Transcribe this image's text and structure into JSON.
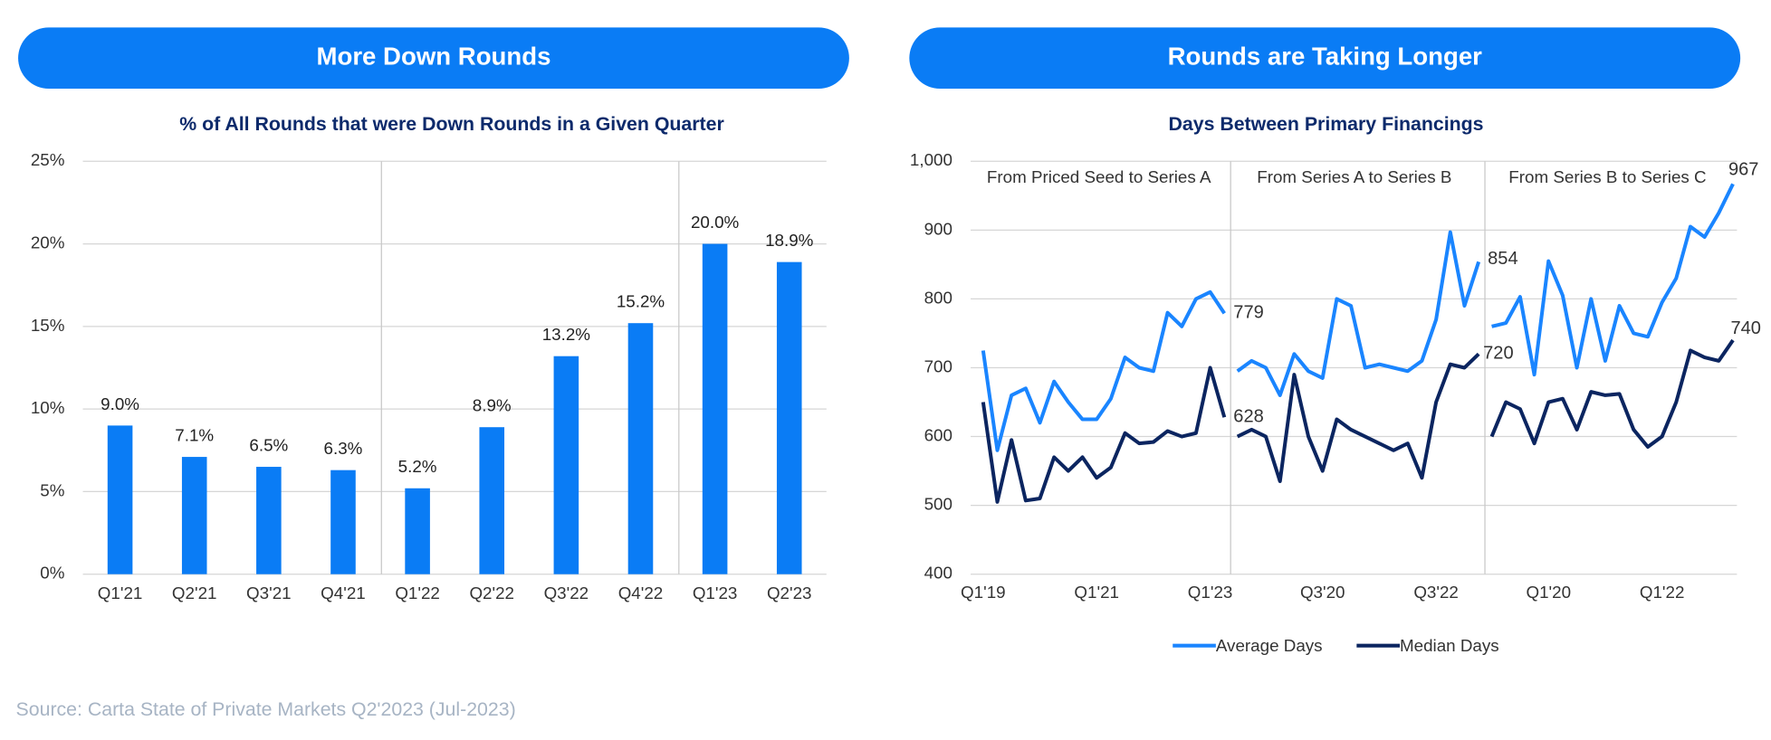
{
  "headers": [
    "More Down Rounds",
    "Rounds are Taking Longer"
  ],
  "chart_data": [
    {
      "type": "bar",
      "title": "% of All Rounds that were Down Rounds in a Given Quarter",
      "categories": [
        "Q1'21",
        "Q2'21",
        "Q3'21",
        "Q4'21",
        "Q1'22",
        "Q2'22",
        "Q3'22",
        "Q4'22",
        "Q1'23",
        "Q2'23"
      ],
      "values": [
        9.0,
        7.1,
        6.5,
        6.3,
        5.2,
        8.9,
        13.2,
        15.2,
        20.0,
        18.9
      ],
      "value_labels": [
        "9.0%",
        "7.1%",
        "6.5%",
        "6.3%",
        "5.2%",
        "8.9%",
        "13.2%",
        "15.2%",
        "20.0%",
        "18.9%"
      ],
      "color": "#0a7cf5",
      "ylim": [
        0,
        25
      ],
      "yticks": [
        {
          "value": 0,
          "label": "0%"
        },
        {
          "value": 5,
          "label": "5%"
        },
        {
          "value": 10,
          "label": "10%"
        },
        {
          "value": 15,
          "label": "15%"
        },
        {
          "value": 20,
          "label": "20%"
        },
        {
          "value": 25,
          "label": "25%"
        }
      ],
      "grid": true
    },
    {
      "type": "line",
      "title": "Days Between Primary Financings",
      "ylim": [
        400,
        1000
      ],
      "yticks": [
        400,
        500,
        600,
        700,
        800,
        900,
        {
          "value": 1000,
          "label": "1,000"
        }
      ],
      "grid": true,
      "legend": "bottom",
      "series": [
        {
          "name": "Average Days",
          "color": "#1a85ff"
        },
        {
          "name": "Median Days",
          "color": "#0b2560"
        }
      ],
      "panels": [
        {
          "label": "From Priced Seed to Series A",
          "categories": [
            "Q1'19",
            null,
            null,
            null,
            null,
            null,
            null,
            null,
            "Q1'21",
            null,
            null,
            null,
            null,
            null,
            null,
            null,
            "Q1'23",
            null
          ],
          "series": [
            {
              "values": [
                725,
                580,
                660,
                670,
                620,
                680,
                650,
                625,
                625,
                655,
                715,
                700,
                695,
                780,
                760,
                800,
                810,
                779
              ]
            },
            {
              "values": [
                650,
                505,
                595,
                507,
                510,
                570,
                550,
                570,
                540,
                555,
                605,
                590,
                592,
                608,
                600,
                605,
                700,
                628
              ]
            }
          ]
        },
        {
          "label": "From Series A to Series B",
          "categories": [
            null,
            null,
            null,
            null,
            null,
            null,
            "Q3'20",
            null,
            null,
            null,
            null,
            null,
            null,
            null,
            "Q3'22",
            null,
            null,
            null
          ],
          "series": [
            {
              "values": [
                695,
                710,
                700,
                660,
                720,
                695,
                685,
                800,
                790,
                700,
                705,
                700,
                695,
                710,
                770,
                897,
                790,
                854
              ]
            },
            {
              "values": [
                600,
                610,
                600,
                535,
                690,
                600,
                550,
                625,
                610,
                600,
                590,
                580,
                590,
                540,
                650,
                705,
                700,
                720
              ]
            }
          ]
        },
        {
          "label": "From Series B to Series C",
          "categories": [
            null,
            null,
            null,
            null,
            "Q1'20",
            null,
            null,
            null,
            null,
            null,
            null,
            null,
            "Q1'22",
            null,
            null,
            null,
            null,
            null
          ],
          "series": [
            {
              "values": [
                760,
                765,
                803,
                690,
                855,
                805,
                700,
                800,
                710,
                790,
                750,
                745,
                795,
                830,
                905,
                890,
                925,
                967
              ]
            },
            {
              "values": [
                600,
                650,
                640,
                590,
                650,
                655,
                610,
                665,
                660,
                662,
                610,
                585,
                600,
                650,
                725,
                715,
                710,
                740
              ]
            }
          ]
        }
      ]
    }
  ],
  "source": "Source: Carta State of Private Markets Q2'2023 (Jul-2023)"
}
